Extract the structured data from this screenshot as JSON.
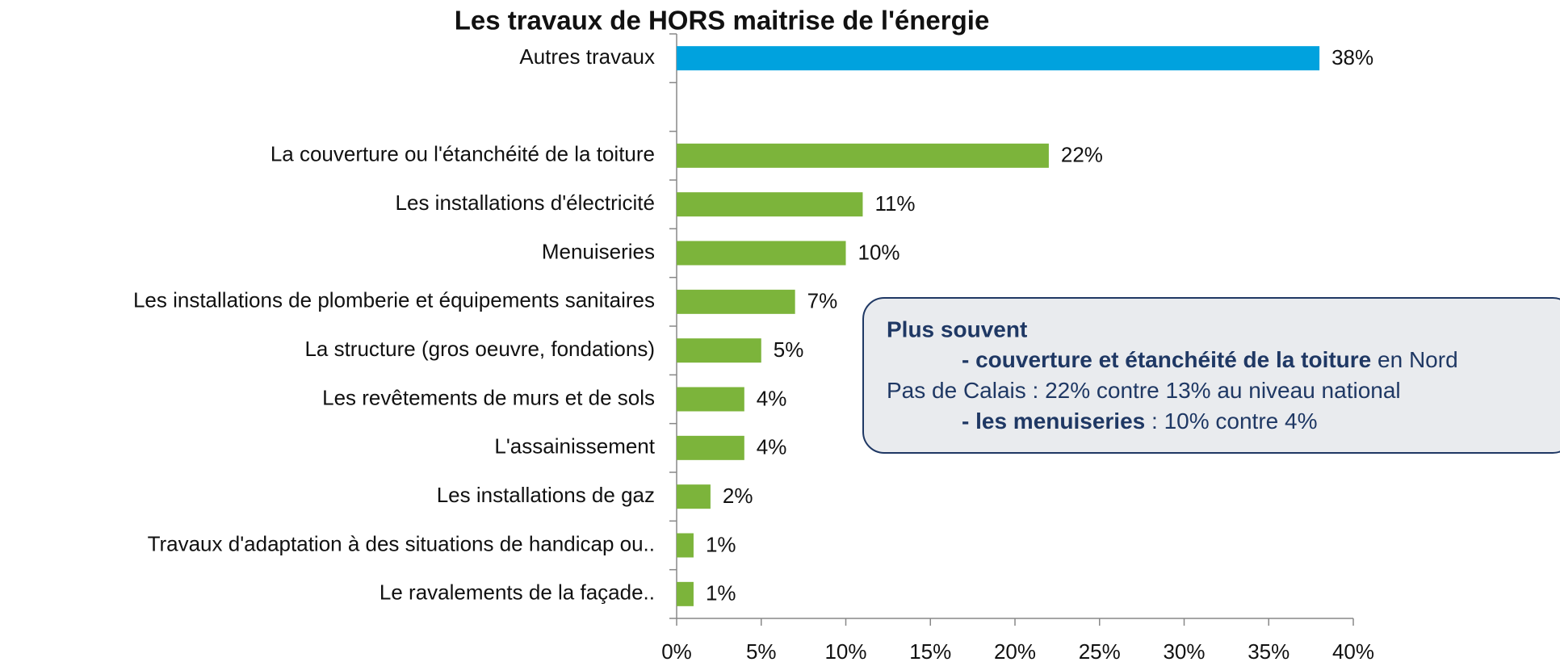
{
  "chart_data": {
    "type": "bar",
    "orientation": "horizontal",
    "title": "Les travaux de HORS maitrise de l'énergie",
    "categories": [
      "Autres travaux",
      null,
      "La couverture ou l'étanchéité de la toiture",
      "Les installations d'électricité",
      "Menuiseries",
      "Les installations de plomberie et équipements sanitaires",
      "La structure (gros oeuvre, fondations)",
      "Les revêtements de murs et de sols",
      "L'assainissement",
      "Les installations de gaz",
      "Travaux d'adaptation à des situations de handicap ou..",
      "Le ravalements de la façade.."
    ],
    "values": [
      38,
      null,
      22,
      11,
      10,
      7,
      5,
      4,
      4,
      2,
      1,
      1
    ],
    "value_labels": [
      "38%",
      null,
      "22%",
      "11%",
      "10%",
      "7%",
      "5%",
      "4%",
      "4%",
      "2%",
      "1%",
      "1%"
    ],
    "colors": [
      "#00a2de",
      null,
      "#7cb43b",
      "#7cb43b",
      "#7cb43b",
      "#7cb43b",
      "#7cb43b",
      "#7cb43b",
      "#7cb43b",
      "#7cb43b",
      "#7cb43b",
      "#7cb43b"
    ],
    "xlim": [
      0,
      40
    ],
    "xticks": [
      {
        "value": 0,
        "label": "0%"
      },
      {
        "value": 5,
        "label": "5%"
      },
      {
        "value": 10,
        "label": "10%"
      },
      {
        "value": 15,
        "label": "15%"
      },
      {
        "value": 20,
        "label": "20%"
      },
      {
        "value": 25,
        "label": "25%"
      },
      {
        "value": 30,
        "label": "30%"
      },
      {
        "value": 35,
        "label": "35%"
      },
      {
        "value": 40,
        "label": "40%"
      }
    ],
    "grid": false,
    "annotation": {
      "heading": "Plus souvent",
      "lines": [
        [
          {
            "text": "- couverture et étanchéité de la toiture",
            "bold": true
          },
          {
            "text": " en Nord",
            "bold": false
          }
        ],
        [
          {
            "text": "Pas de Calais : 22% contre 13% au niveau national",
            "bold": false
          }
        ],
        [
          {
            "text": "- les menuiseries",
            "bold": true
          },
          {
            "text": " : 10% contre 4%",
            "bold": false
          }
        ]
      ]
    }
  }
}
